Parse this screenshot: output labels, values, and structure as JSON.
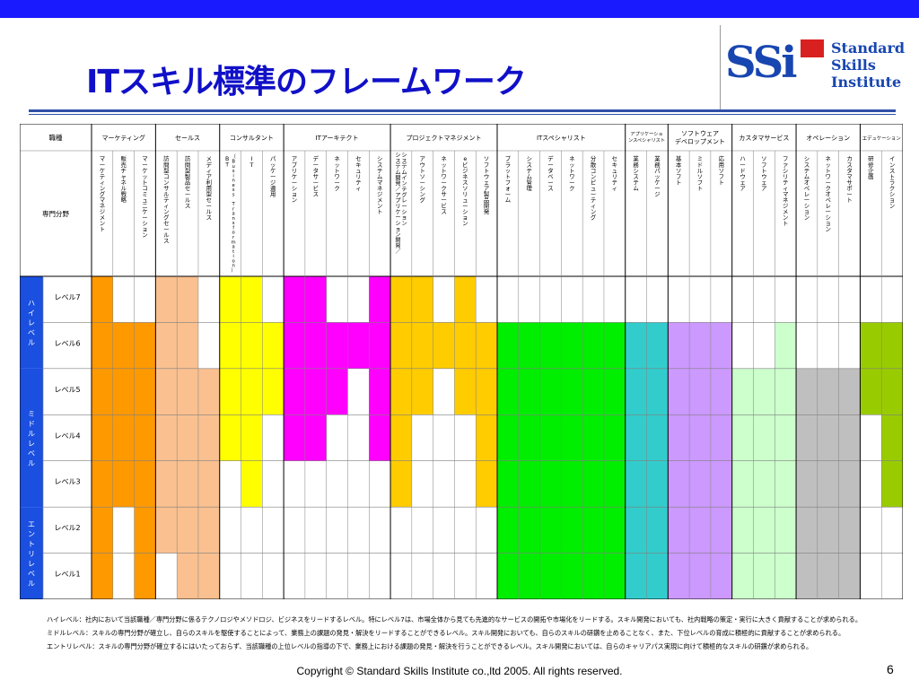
{
  "title": "ITスキル標準のフレームワーク",
  "logo": {
    "mark": "SSi",
    "line1": "Standard",
    "line2": "Skills",
    "line3": "Institute"
  },
  "header": {
    "shokushu": "職種",
    "senmon": "専門分野"
  },
  "jobs": [
    {
      "name": "マーケティング",
      "specs": [
        "マーケティングマネジメント",
        "販売チャネル戦略",
        "マーケットコミュニケーション"
      ]
    },
    {
      "name": "セールス",
      "specs": [
        "訪問型コンサルティングセールス",
        "訪問型製品セールス",
        "メディア利用型セールス"
      ]
    },
    {
      "name": "コンサルタント",
      "specs": [
        "BT（Business Transformation）",
        "IT",
        "パッケージ適用"
      ]
    },
    {
      "name": "ITアーキテクト",
      "specs": [
        "アプリケーション",
        "データサービス",
        "ネットワーク",
        "セキュリティ",
        "システムマネジメント"
      ]
    },
    {
      "name": "プロジェクトマネジメント",
      "specs": [
        "システム開発／アプリケーション開発／システムインテグレーション",
        "アウトソーシング",
        "ネットワークサービス",
        "eビジネスソリューション",
        "ソフトウェア製品開発"
      ]
    },
    {
      "name": "ITスペシャリスト",
      "specs": [
        "プラットフォーム",
        "システム管理",
        "データベース",
        "ネットワーク",
        "分散コンピューティング",
        "セキュリティ"
      ]
    },
    {
      "name": "アプリケーションスペシャリスト",
      "specs": [
        "業務システム",
        "業務パッケージ"
      ]
    },
    {
      "name": "ソフトウェアデベロップメント",
      "specs": [
        "基本ソフト",
        "ミドルソフト",
        "応用ソフト"
      ]
    },
    {
      "name": "カスタマサービス",
      "specs": [
        "ハードウェア",
        "ソフトウェア",
        "ファシリティマネジメント"
      ]
    },
    {
      "name": "オペレーション",
      "specs": [
        "システムオペレーション",
        "ネットワークオペレーション",
        "カスタマサポート"
      ]
    },
    {
      "name": "エデュケーション",
      "specs": [
        "研修企画",
        "インストラクション"
      ]
    }
  ],
  "level_groups": [
    {
      "name": "ハイレベル",
      "levels": [
        "レベル7",
        "レベル6"
      ]
    },
    {
      "name": "ミドルレベル",
      "levels": [
        "レベル5",
        "レベル4",
        "レベル3"
      ]
    },
    {
      "name": "エントリレベル",
      "levels": [
        "レベル2",
        "レベル1"
      ]
    }
  ],
  "colors": {
    "header_bg": "#ffffff",
    "group_bg": "#1a4fe0",
    "grid_line": "#7f7f7f",
    "jobs": [
      "#ff9900",
      "#fac090",
      "#ffff00",
      "#ff00ff",
      "#ffcc00",
      "#00ee00",
      "#33cccc",
      "#cc99ff",
      "#ccffcc",
      "#bfbfbf",
      "#99cc00"
    ]
  },
  "fill_ranges": [
    [
      [
        1,
        7
      ],
      [
        3,
        6
      ],
      [
        1,
        6
      ]
    ],
    [
      [
        2,
        7
      ],
      [
        1,
        7
      ],
      [
        1,
        5
      ]
    ],
    [
      [
        4,
        7
      ],
      [
        3,
        7
      ],
      [
        5,
        6
      ]
    ],
    [
      [
        4,
        7
      ],
      [
        4,
        7
      ],
      [
        5,
        6
      ],
      [
        6,
        6
      ],
      [
        4,
        7
      ]
    ],
    [
      [
        3,
        7
      ],
      [
        5,
        7
      ],
      [
        6,
        6
      ],
      [
        5,
        7
      ],
      [
        3,
        6
      ]
    ],
    [
      [
        1,
        6
      ],
      [
        1,
        6
      ],
      [
        1,
        6
      ],
      [
        1,
        6
      ],
      [
        1,
        6
      ],
      [
        1,
        6
      ]
    ],
    [
      [
        1,
        6
      ],
      [
        1,
        6
      ]
    ],
    [
      [
        1,
        6
      ],
      [
        1,
        6
      ],
      [
        1,
        6
      ]
    ],
    [
      [
        1,
        5
      ],
      [
        1,
        5
      ],
      [
        1,
        6
      ]
    ],
    [
      [
        1,
        5
      ],
      [
        1,
        5
      ],
      [
        1,
        5
      ]
    ],
    [
      [
        5,
        6
      ],
      [
        3,
        6
      ]
    ]
  ],
  "notes": [
    "ハイレベル：社内において当該職種／専門分野に係るテクノロジやメソドロジ、ビジネスをリードするレベル。特にレベル7は、市場全体から見ても先進的なサービスの開拓や市場化をリードする。スキル開発においても、社内戦略の策定・実行に大きく貢献することが求められる。",
    "ミドルレベル：スキルの専門分野が確立し、自らのスキルを駆使することによって、業務上の課題の発見・解決をリードすることができるレベル。スキル開発においても、自らのスキルの研鑽を止めることなく、また、下位レベルの育成に積極的に貢献することが求められる。",
    "エントリレベル：スキルの専門分野が確立するにはいたっておらず、当該職種の上位レベルの指導の下で、業務上における課題の発見・解決を行うことができるレベル。スキル開発においては、自らのキャリアパス実現に向けて積極的なスキルの研鑽が求められる。"
  ],
  "copyright": "Copyright © Standard Skills Institute co.,ltd 2005. All rights reserved.",
  "page_number": "6"
}
